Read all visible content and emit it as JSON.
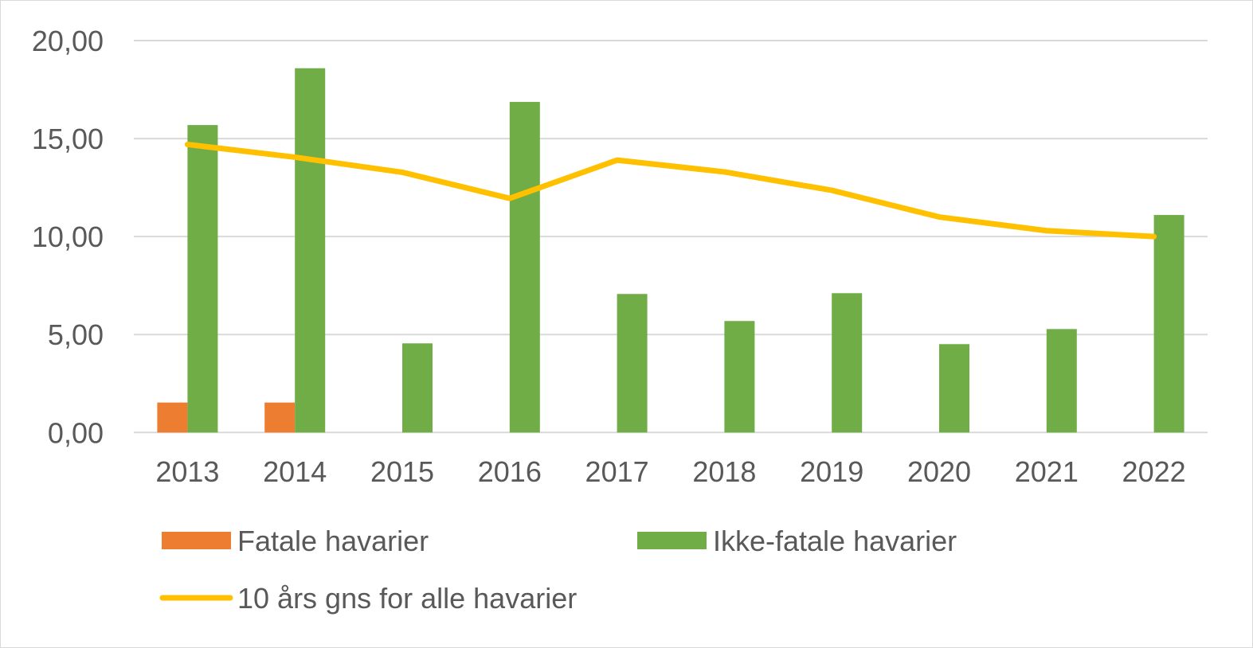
{
  "chart_data": {
    "type": "bar",
    "title": "",
    "xlabel": "",
    "ylabel": "",
    "ylim": [
      0,
      20
    ],
    "yticks": [
      "0,00",
      "5,00",
      "10,00",
      "15,00",
      "20,00"
    ],
    "ytick_values": [
      0,
      5,
      10,
      15,
      20
    ],
    "grid": true,
    "legend_placement": "bottom",
    "categories": [
      "2013",
      "2014",
      "2015",
      "2016",
      "2017",
      "2018",
      "2019",
      "2020",
      "2021",
      "2022"
    ],
    "series": [
      {
        "name": "Fatale havarier",
        "type": "bar",
        "color": "#ED7D31",
        "values": [
          1.53,
          1.53,
          0,
          0,
          0,
          0,
          0,
          0,
          0,
          0
        ]
      },
      {
        "name": "Ikke-fatale havarier",
        "type": "bar",
        "color": "#70AD47",
        "values": [
          15.69,
          18.59,
          4.55,
          16.87,
          7.07,
          5.69,
          7.11,
          4.51,
          5.28,
          11.1
        ]
      },
      {
        "name": "10 års gns for alle havarier",
        "type": "line",
        "color": "#FFC000",
        "values": [
          14.7,
          14.05,
          13.28,
          11.95,
          13.9,
          13.3,
          12.36,
          11.0,
          10.3,
          10.0
        ]
      }
    ]
  }
}
